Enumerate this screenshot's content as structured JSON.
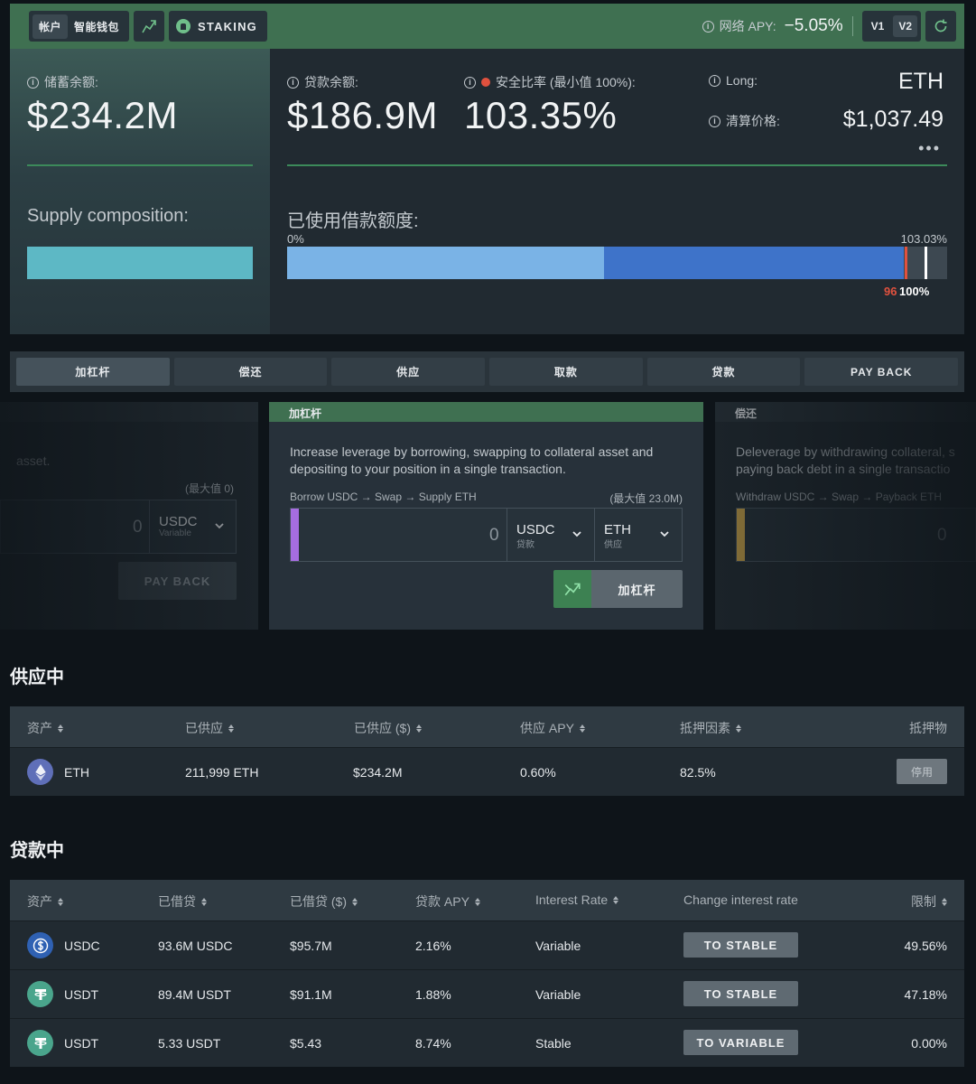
{
  "topbar": {
    "account_label": "帐户",
    "wallet_label": "智能钱包",
    "staking_label": "STAKING",
    "net_apy_label": "网络 APY:",
    "net_apy_value": "−5.05%",
    "v1_label": "V1",
    "v2_label": "V2",
    "accent_color": "#3f7051"
  },
  "overview": {
    "supply_balance_label": "储蓄余额:",
    "supply_balance_value": "$234.2M",
    "supply_composition_label": "Supply composition:",
    "borrow_balance_label": "贷款余额:",
    "borrow_balance_value": "$186.9M",
    "safety_ratio_label": "安全比率 (最小值 100%):",
    "safety_ratio_value": "103.35%",
    "long_label": "Long:",
    "long_value": "ETH",
    "liq_price_label": "清算价格:",
    "liq_price_value": "$1,037.49",
    "credit_used_label": "已使用借款额度:",
    "credit_min_label": "0%",
    "credit_max_label": "103.03%",
    "marker_96_label": "96",
    "marker_100_label": "100%",
    "credit_segments_fraction": [
      0.48,
      0.454
    ],
    "colors": {
      "supply_bar": "#5db8c5",
      "credit_light": "#7ab3e6",
      "credit_dark": "#3e73c9",
      "danger": "#e0513e"
    }
  },
  "action_tabs": [
    "加杠杆",
    "偿还",
    "供应",
    "取款",
    "贷款",
    "PAY BACK"
  ],
  "cards": {
    "left": {
      "desc_fragment": "asset.",
      "max_label": "(最大值 0)",
      "amount": "0",
      "asset": "USDC",
      "asset_sub": "Variable",
      "button": "PAY BACK"
    },
    "center": {
      "title": "加杠杆",
      "desc": "Increase leverage by borrowing, swapping to collateral asset and depositing to your position in a single transaction.",
      "route": "Borrow USDC → Swap → Supply ETH",
      "max_label": "(最大值 23.0M)",
      "amount": "0",
      "asset1": "USDC",
      "asset1_sub": "贷款",
      "asset2": "ETH",
      "asset2_sub": "供应",
      "button": "加杠杆"
    },
    "right": {
      "title": "偿还",
      "desc": "Deleverage by withdrawing collateral, s paying back debt in a single transactio",
      "route": "Withdraw USDC → Swap → Payback ETH",
      "amount": "0"
    }
  },
  "supplying": {
    "title": "供应中",
    "headers": [
      "资产",
      "已供应",
      "已供应 ($)",
      "供应 APY",
      "抵押因素",
      "抵押物"
    ],
    "rows": [
      {
        "asset": "ETH",
        "supplied": "211,999 ETH",
        "supplied_usd": "$234.2M",
        "apy": "0.60%",
        "collateral_factor": "82.5%",
        "action": "停用"
      }
    ]
  },
  "borrowing": {
    "title": "贷款中",
    "headers": [
      "资产",
      "已借贷",
      "已借贷 ($)",
      "贷款 APY",
      "Interest Rate",
      "Change interest rate",
      "限制"
    ],
    "rows": [
      {
        "asset": "USDC",
        "borrowed": "93.6M USDC",
        "borrowed_usd": "$95.7M",
        "apy": "2.16%",
        "rate_type": "Variable",
        "action": "TO STABLE",
        "limit": "49.56%"
      },
      {
        "asset": "USDT",
        "borrowed": "89.4M USDT",
        "borrowed_usd": "$91.1M",
        "apy": "1.88%",
        "rate_type": "Variable",
        "action": "TO STABLE",
        "limit": "47.18%"
      },
      {
        "asset": "USDT",
        "borrowed": "5.33 USDT",
        "borrowed_usd": "$5.43",
        "apy": "8.74%",
        "rate_type": "Stable",
        "action": "TO VARIABLE",
        "limit": "0.00%"
      }
    ]
  }
}
